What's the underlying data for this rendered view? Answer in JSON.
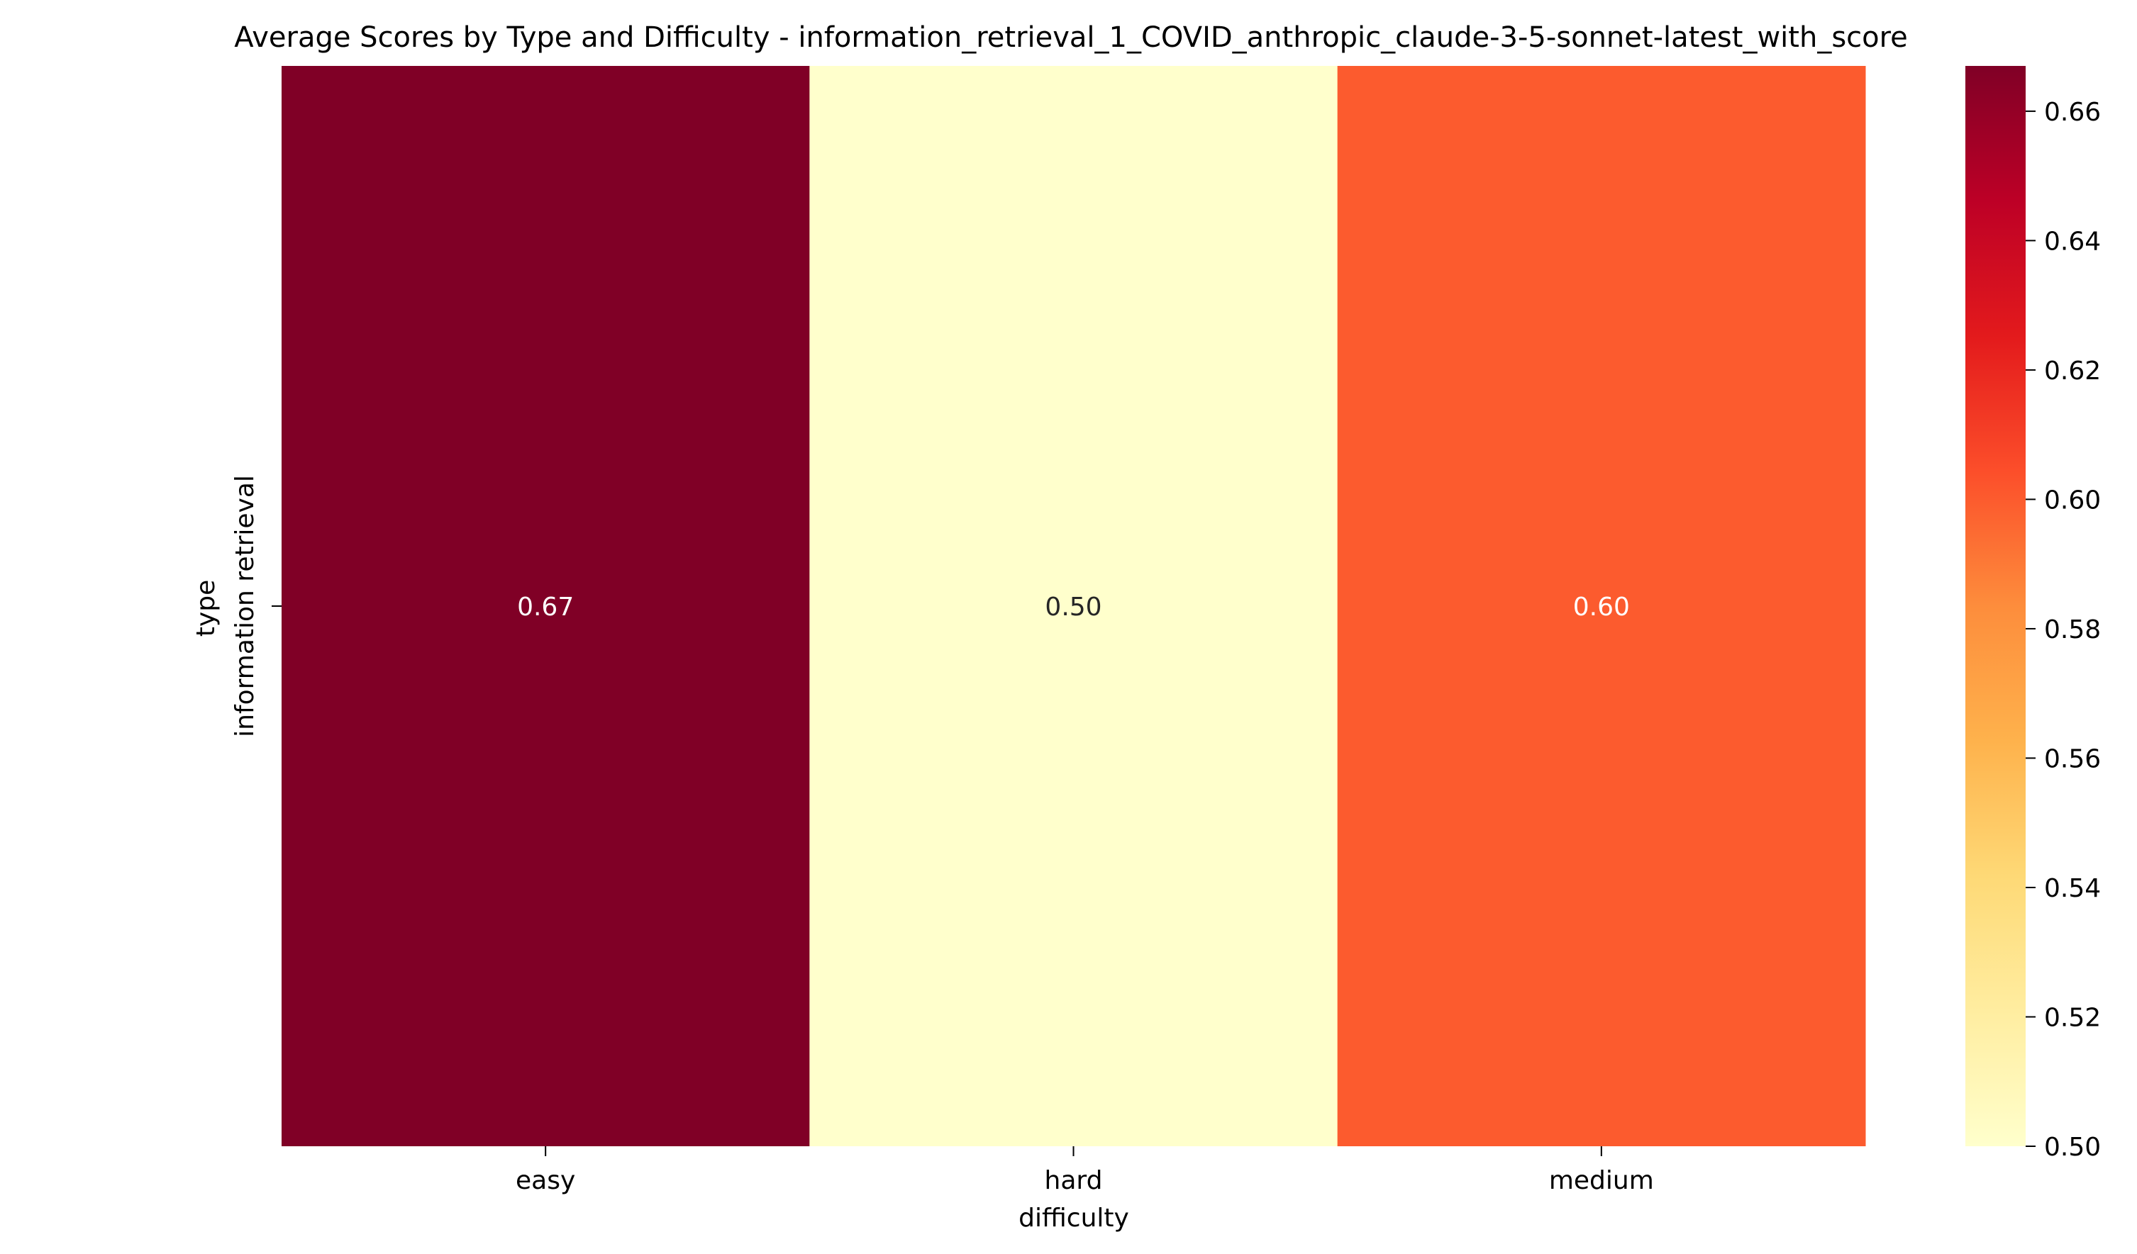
{
  "chart_data": {
    "type": "heatmap",
    "title": "Average Scores by Type and Difficulty - information_retrieval_1_COVID_anthropic_claude-3-5-sonnet-latest_with_score",
    "xlabel": "difficulty",
    "ylabel": "type",
    "x_categories": [
      "easy",
      "hard",
      "medium"
    ],
    "y_categories": [
      "information retrieval"
    ],
    "values": [
      [
        0.67,
        0.5,
        0.6
      ]
    ],
    "value_labels": [
      [
        "0.67",
        "0.50",
        "0.60"
      ]
    ],
    "colormap": "YlOrRd",
    "colorbar": {
      "range": [
        0.5,
        0.667
      ],
      "ticks": [
        0.5,
        0.52,
        0.54,
        0.56,
        0.58,
        0.6,
        0.62,
        0.64,
        0.66
      ],
      "tick_labels": [
        "0.50",
        "0.52",
        "0.54",
        "0.56",
        "0.58",
        "0.60",
        "0.62",
        "0.64",
        "0.66"
      ]
    },
    "cell_colors": [
      "#800026",
      "#ffffcc",
      "#fc5b2e"
    ],
    "grid": false,
    "legend": "colorbar-right"
  }
}
